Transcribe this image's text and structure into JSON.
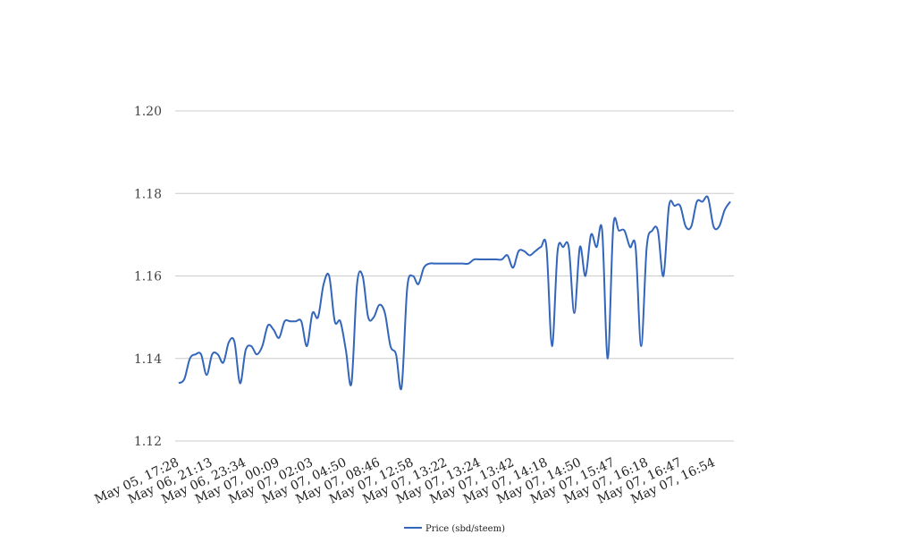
{
  "chart_data": {
    "type": "line",
    "title": "",
    "xlabel": "",
    "ylabel": "",
    "ylim": [
      1.12,
      1.2
    ],
    "y_ticks": [
      "1.12",
      "1.14",
      "1.16",
      "1.18",
      "1.20"
    ],
    "x_tick_labels": [
      "May 05, 17:28",
      "May 06, 21:13",
      "May 06, 23:34",
      "May 07, 00:09",
      "May 07, 02:03",
      "May 07, 04:50",
      "May 07, 08:46",
      "May 07, 12:58",
      "May 07, 13:22",
      "May 07, 13:24",
      "May 07, 13:42",
      "May 07, 14:18",
      "May 07, 14:50",
      "May 07, 15:47",
      "May 07, 16:18",
      "May 07, 16:47",
      "May 07, 16:54"
    ],
    "grid": true,
    "legend_position": "bottom",
    "series": [
      {
        "name": "Price (sbd/steem)",
        "color": "#3366bb",
        "values": [
          1.134,
          1.135,
          1.14,
          1.141,
          1.141,
          1.136,
          1.141,
          1.141,
          1.139,
          1.144,
          1.144,
          1.134,
          1.142,
          1.143,
          1.141,
          1.143,
          1.148,
          1.147,
          1.145,
          1.149,
          1.149,
          1.149,
          1.149,
          1.143,
          1.151,
          1.15,
          1.158,
          1.16,
          1.149,
          1.149,
          1.142,
          1.134,
          1.158,
          1.16,
          1.15,
          1.15,
          1.153,
          1.151,
          1.143,
          1.141,
          1.133,
          1.157,
          1.16,
          1.158,
          1.162,
          1.163,
          1.163,
          1.163,
          1.163,
          1.163,
          1.163,
          1.163,
          1.163,
          1.164,
          1.164,
          1.164,
          1.164,
          1.164,
          1.164,
          1.165,
          1.162,
          1.166,
          1.166,
          1.165,
          1.166,
          1.167,
          1.167,
          1.143,
          1.166,
          1.167,
          1.167,
          1.151,
          1.167,
          1.16,
          1.17,
          1.167,
          1.171,
          1.14,
          1.172,
          1.171,
          1.171,
          1.167,
          1.167,
          1.143,
          1.167,
          1.171,
          1.171,
          1.16,
          1.177,
          1.177,
          1.177,
          1.172,
          1.172,
          1.178,
          1.178,
          1.179,
          1.172,
          1.172,
          1.176,
          1.178
        ]
      }
    ]
  }
}
